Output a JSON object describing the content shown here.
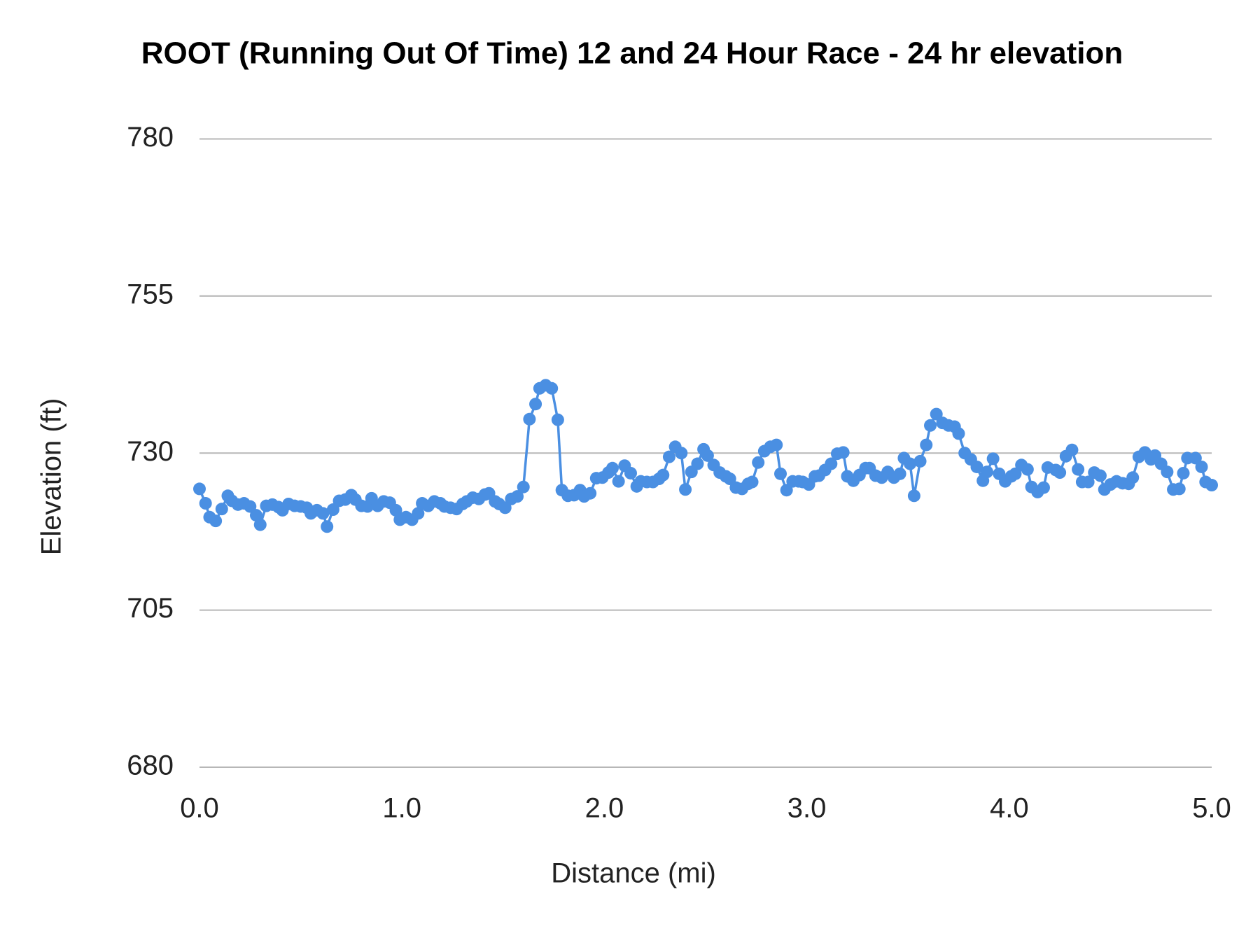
{
  "chart_data": {
    "type": "line",
    "title": "ROOT (Running Out Of Time) 12 and 24 Hour Race - 24 hr elevation",
    "x_label": "Distance (mi)",
    "y_label": "Elevation (ft)",
    "xlim": [
      0,
      5
    ],
    "ylim": [
      680,
      780
    ],
    "xticks": [
      {
        "value": 0,
        "label": "0.0"
      },
      {
        "value": 1,
        "label": "1.0"
      },
      {
        "value": 2,
        "label": "2.0"
      },
      {
        "value": 3,
        "label": "3.0"
      },
      {
        "value": 4,
        "label": "4.0"
      },
      {
        "value": 5,
        "label": "5.0"
      }
    ],
    "yticks": [
      680,
      705,
      730,
      755,
      780
    ],
    "grid": true,
    "x": [
      0.0,
      0.03,
      0.05,
      0.08,
      0.11,
      0.14,
      0.16,
      0.19,
      0.22,
      0.25,
      0.28,
      0.3,
      0.33,
      0.36,
      0.39,
      0.41,
      0.44,
      0.47,
      0.5,
      0.53,
      0.55,
      0.58,
      0.61,
      0.63,
      0.66,
      0.69,
      0.72,
      0.75,
      0.77,
      0.8,
      0.83,
      0.85,
      0.88,
      0.91,
      0.94,
      0.97,
      0.99,
      1.02,
      1.05,
      1.08,
      1.1,
      1.13,
      1.16,
      1.19,
      1.21,
      1.24,
      1.27,
      1.3,
      1.32,
      1.35,
      1.38,
      1.41,
      1.43,
      1.46,
      1.48,
      1.51,
      1.54,
      1.57,
      1.6,
      1.63,
      1.66,
      1.68,
      1.71,
      1.74,
      1.77,
      1.79,
      1.82,
      1.85,
      1.88,
      1.9,
      1.93,
      1.96,
      1.99,
      2.02,
      2.04,
      2.07,
      2.1,
      2.13,
      2.16,
      2.18,
      2.21,
      2.24,
      2.27,
      2.29,
      2.32,
      2.35,
      2.38,
      2.4,
      2.43,
      2.46,
      2.49,
      2.51,
      2.54,
      2.57,
      2.6,
      2.62,
      2.65,
      2.68,
      2.71,
      2.73,
      2.76,
      2.79,
      2.82,
      2.85,
      2.87,
      2.9,
      2.93,
      2.96,
      2.98,
      3.01,
      3.04,
      3.06,
      3.09,
      3.12,
      3.15,
      3.18,
      3.2,
      3.23,
      3.26,
      3.29,
      3.31,
      3.34,
      3.37,
      3.4,
      3.43,
      3.46,
      3.48,
      3.51,
      3.53,
      3.56,
      3.59,
      3.61,
      3.64,
      3.67,
      3.7,
      3.73,
      3.75,
      3.78,
      3.81,
      3.84,
      3.87,
      3.89,
      3.92,
      3.95,
      3.98,
      4.01,
      4.03,
      4.06,
      4.09,
      4.11,
      4.14,
      4.17,
      4.19,
      4.23,
      4.25,
      4.28,
      4.31,
      4.34,
      4.36,
      4.39,
      4.42,
      4.45,
      4.47,
      4.5,
      4.53,
      4.56,
      4.59,
      4.61,
      4.64,
      4.67,
      4.7,
      4.72,
      4.75,
      4.78,
      4.81,
      4.84,
      4.86,
      4.88,
      4.92,
      4.95,
      4.97,
      5.0
    ],
    "series": [
      {
        "color": "#4a8fe2",
        "values": [
          724.3,
          722.0,
          719.8,
          719.2,
          721.1,
          723.2,
          722.4,
          721.8,
          722.0,
          721.5,
          720.1,
          718.6,
          721.6,
          721.8,
          721.4,
          720.9,
          721.9,
          721.6,
          721.5,
          721.3,
          720.4,
          720.9,
          720.4,
          718.3,
          721.0,
          722.4,
          722.6,
          723.3,
          722.6,
          721.6,
          721.5,
          722.8,
          721.6,
          722.3,
          722.1,
          720.9,
          719.4,
          719.8,
          719.4,
          720.4,
          722.0,
          721.6,
          722.3,
          722.0,
          721.5,
          721.3,
          721.1,
          721.9,
          722.3,
          722.9,
          722.7,
          723.4,
          723.6,
          722.3,
          721.9,
          721.3,
          722.7,
          723.1,
          724.6,
          735.4,
          737.8,
          740.3,
          740.8,
          740.3,
          735.3,
          724.1,
          723.2,
          723.3,
          724.1,
          723.1,
          723.6,
          726.0,
          726.1,
          726.9,
          727.6,
          725.5,
          728.0,
          726.8,
          724.7,
          725.5,
          725.4,
          725.4,
          725.9,
          726.5,
          729.4,
          731.0,
          730.0,
          724.2,
          727.0,
          728.3,
          730.6,
          729.6,
          728.1,
          726.9,
          726.3,
          725.9,
          724.5,
          724.3,
          725.1,
          725.4,
          728.5,
          730.3,
          731.0,
          731.3,
          726.7,
          724.1,
          725.5,
          725.5,
          725.4,
          725.0,
          726.3,
          726.4,
          727.3,
          728.3,
          729.9,
          730.1,
          726.3,
          725.6,
          726.5,
          727.6,
          727.6,
          726.4,
          726.1,
          727.0,
          726.1,
          726.7,
          729.2,
          728.3,
          723.2,
          728.7,
          731.3,
          734.4,
          736.2,
          734.8,
          734.4,
          734.2,
          733.1,
          730.0,
          729.0,
          727.8,
          725.6,
          727.0,
          729.1,
          726.7,
          725.5,
          726.3,
          726.7,
          728.1,
          727.4,
          724.6,
          723.8,
          724.5,
          727.7,
          727.3,
          726.9,
          729.5,
          730.5,
          727.4,
          725.4,
          725.4,
          726.9,
          726.4,
          724.2,
          725.0,
          725.5,
          725.2,
          725.1,
          726.1,
          729.4,
          730.1,
          729.0,
          729.6,
          728.3,
          727.0,
          724.2,
          724.3,
          726.8,
          729.2,
          729.2,
          727.8,
          725.4,
          724.9
        ]
      }
    ]
  }
}
